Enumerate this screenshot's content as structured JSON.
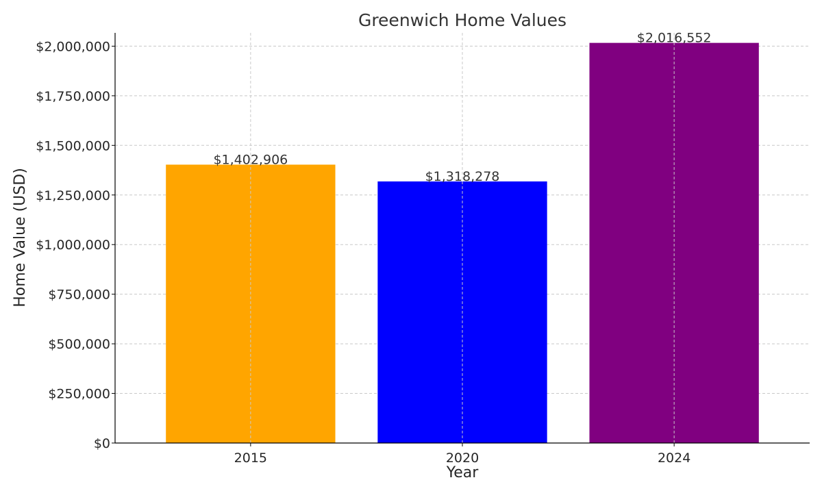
{
  "chart_data": {
    "type": "bar",
    "title": "Greenwich Home Values",
    "xlabel": "Year",
    "ylabel": "Home Value (USD)",
    "categories": [
      "2015",
      "2020",
      "2024"
    ],
    "values": [
      1402906,
      1318278,
      2016552
    ],
    "value_labels": [
      "$1,402,906",
      "$1,318,278",
      "$2,016,552"
    ],
    "colors": [
      "#FFA500",
      "#0000FF",
      "#800080"
    ],
    "ylim": [
      0,
      2067000
    ],
    "yticks": [
      0,
      250000,
      500000,
      750000,
      1000000,
      1250000,
      1500000,
      1750000,
      2000000
    ],
    "ytick_labels": [
      "$0",
      "$250,000",
      "$500,000",
      "$750,000",
      "$1,000,000",
      "$1,250,000",
      "$1,500,000",
      "$1,750,000",
      "$2,000,000"
    ],
    "grid": true,
    "legend": "none"
  }
}
